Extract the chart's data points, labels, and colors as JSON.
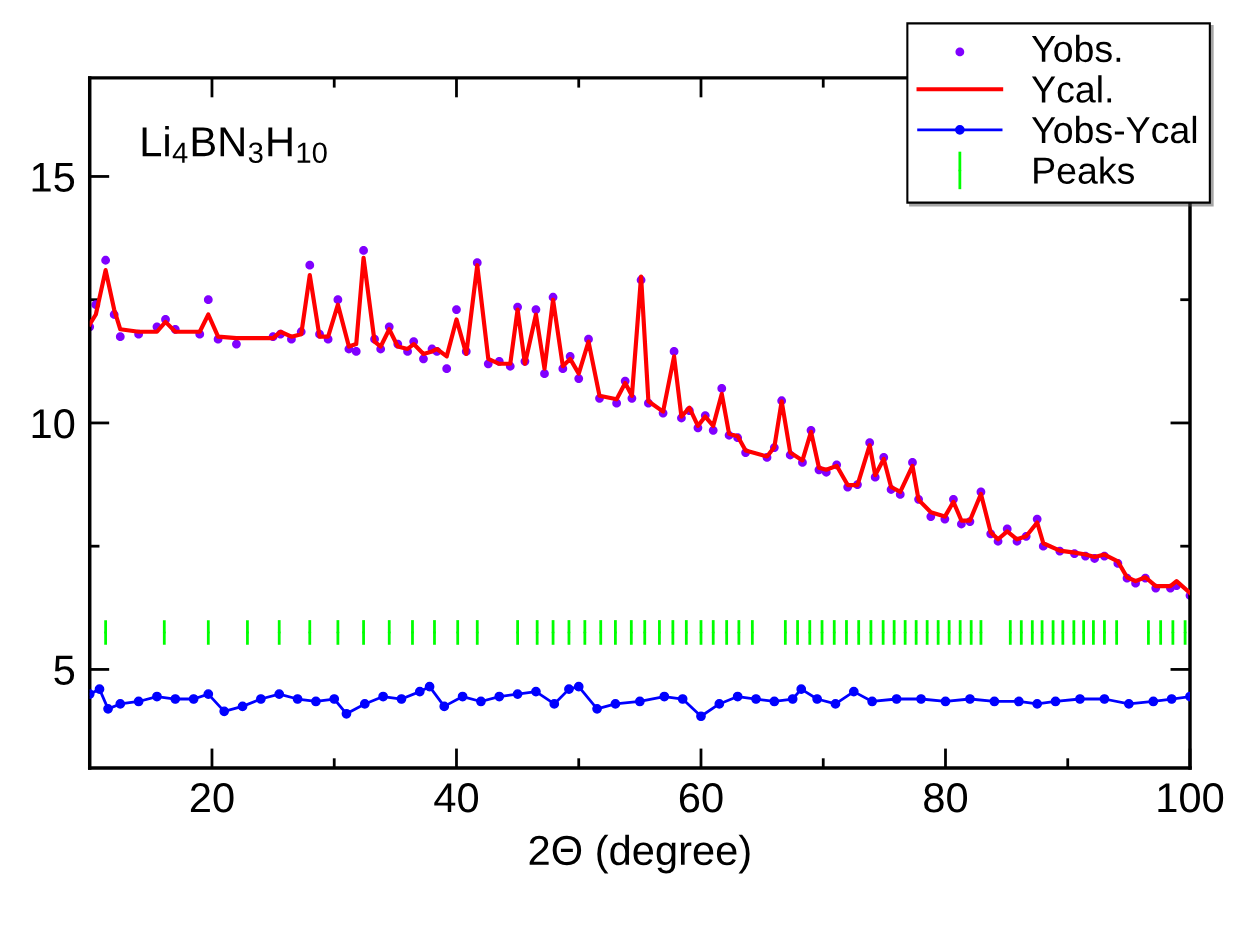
{
  "chart_data": {
    "type": "scatter",
    "xlabel": "2Θ (degree)",
    "annotations": [
      "Li$_{4}$BN$_{3}$H$_{10}$"
    ],
    "xlim": [
      10,
      100
    ],
    "ylim": [
      3,
      17
    ],
    "xticks": [
      20,
      {
        "value": 30,
        "label": null
      },
      40,
      {
        "value": 50,
        "label": null
      },
      60,
      {
        "value": 70,
        "label": null
      },
      80,
      {
        "value": 90,
        "label": null
      },
      100
    ],
    "yticks": [
      5,
      {
        "value": 7.5,
        "label": null
      },
      10,
      {
        "value": 12.5,
        "label": null
      },
      15
    ],
    "grid": false,
    "legend": "top right",
    "series": [
      {
        "name": "Yobs.",
        "type": "scatter",
        "marker": "circle",
        "color": "#8000ff",
        "x": [
          10,
          10.5,
          11.3,
          12.0,
          12.5,
          14,
          15.5,
          16.2,
          17,
          19,
          19.7,
          20.5,
          22,
          25,
          25.6,
          26.5,
          27.3,
          28.0,
          28.8,
          29.5,
          30.3,
          31.2,
          31.8,
          32.4,
          33.3,
          33.8,
          34.5,
          35.2,
          36,
          36.5,
          37.3,
          38,
          38.4,
          39.2,
          40.0,
          40.8,
          41.7,
          42.6,
          43.5,
          44.4,
          45.0,
          45.6,
          46.5,
          47.2,
          47.9,
          48.7,
          49.3,
          50.0,
          50.8,
          51.7,
          53.1,
          53.8,
          54.35,
          55.1,
          55.7,
          56.9,
          57.8,
          58.4,
          59.05,
          59.75,
          60.35,
          61.0,
          61.7,
          62.3,
          63.0,
          63.65,
          65.4,
          66.0,
          66.6,
          67.3,
          68.3,
          69.0,
          69.65,
          70.25,
          71.1,
          72.0,
          72.8,
          73.8,
          74.25,
          74.95,
          75.55,
          76.3,
          77.3,
          77.8,
          78.8,
          79.95,
          80.65,
          81.3,
          82.0,
          82.9,
          83.7,
          84.3,
          85.05,
          85.85,
          86.6,
          87.5,
          88.0,
          89.35,
          90.55,
          91.45,
          92.2,
          93.0,
          94.1,
          94.85,
          95.55,
          96.35,
          97.2,
          98.4,
          98.9,
          100
        ],
        "values": [
          11.95,
          12.4,
          13.3,
          12.2,
          11.75,
          11.8,
          11.95,
          12.1,
          11.9,
          11.8,
          12.5,
          11.7,
          11.6,
          11.75,
          11.8,
          11.7,
          11.85,
          13.2,
          11.8,
          11.7,
          12.5,
          11.5,
          11.45,
          13.5,
          11.7,
          11.5,
          11.95,
          11.6,
          11.45,
          11.65,
          11.3,
          11.5,
          11.45,
          11.1,
          12.3,
          11.45,
          13.25,
          11.2,
          11.25,
          11.15,
          12.35,
          11.25,
          12.3,
          11.0,
          12.55,
          11.1,
          11.35,
          10.9,
          11.7,
          10.5,
          10.4,
          10.85,
          10.5,
          12.9,
          10.4,
          10.2,
          11.45,
          10.1,
          10.25,
          9.9,
          10.15,
          9.85,
          10.7,
          9.75,
          9.7,
          9.4,
          9.3,
          9.5,
          10.45,
          9.35,
          9.2,
          9.85,
          9.05,
          9.0,
          9.15,
          8.7,
          8.75,
          9.6,
          8.9,
          9.3,
          8.65,
          8.55,
          9.2,
          8.45,
          8.1,
          8.05,
          8.45,
          7.95,
          8.0,
          8.6,
          7.75,
          7.6,
          7.85,
          7.6,
          7.7,
          8.05,
          7.5,
          7.4,
          7.35,
          7.3,
          7.25,
          7.3,
          7.15,
          6.85,
          6.75,
          6.85,
          6.65,
          6.65,
          6.7,
          6.5
        ]
      },
      {
        "name": "Ycal.",
        "type": "line",
        "marker": "none",
        "line_style": "solid",
        "color": "#ff0000",
        "x": [
          10,
          10.5,
          11.3,
          12.0,
          12.5,
          14,
          15.5,
          16.2,
          17,
          19,
          19.7,
          20.5,
          22,
          25,
          25.6,
          26.5,
          27.3,
          28.0,
          28.8,
          29.5,
          30.3,
          31.2,
          31.8,
          32.4,
          33.3,
          33.8,
          34.5,
          35.2,
          36,
          36.5,
          37.3,
          38,
          38.4,
          39.2,
          40.0,
          40.8,
          41.7,
          42.6,
          43.5,
          44.4,
          45.0,
          45.6,
          46.5,
          47.2,
          47.9,
          48.7,
          49.3,
          50.0,
          50.8,
          51.7,
          53.1,
          53.8,
          54.35,
          55.1,
          55.7,
          56.9,
          57.8,
          58.4,
          59.05,
          59.75,
          60.35,
          61.0,
          61.7,
          62.3,
          63.0,
          63.65,
          65.4,
          66.0,
          66.6,
          67.3,
          68.3,
          69.0,
          69.65,
          70.25,
          71.1,
          72.0,
          72.8,
          73.8,
          74.25,
          74.95,
          75.55,
          76.3,
          77.3,
          77.8,
          78.8,
          79.95,
          80.65,
          81.3,
          82.0,
          82.9,
          83.7,
          84.3,
          85.05,
          85.85,
          86.6,
          87.5,
          88.0,
          89.35,
          90.55,
          91.45,
          92.2,
          93.0,
          94.1,
          94.85,
          95.55,
          96.35,
          97.2,
          98.4,
          98.9,
          100
        ],
        "values": [
          12.0,
          12.2,
          13.1,
          12.3,
          11.9,
          11.85,
          11.85,
          12.05,
          11.85,
          11.85,
          12.2,
          11.75,
          11.72,
          11.72,
          11.85,
          11.75,
          11.8,
          13.0,
          11.75,
          11.75,
          12.4,
          11.55,
          11.6,
          13.35,
          11.65,
          11.55,
          11.9,
          11.55,
          11.5,
          11.6,
          11.4,
          11.45,
          11.5,
          11.35,
          12.1,
          11.4,
          13.2,
          11.3,
          11.2,
          11.2,
          12.3,
          11.2,
          12.2,
          11.1,
          12.5,
          11.15,
          11.3,
          11.0,
          11.65,
          10.55,
          10.48,
          10.81,
          10.55,
          12.97,
          10.44,
          10.23,
          11.35,
          10.13,
          10.31,
          9.94,
          10.13,
          9.94,
          10.59,
          9.78,
          9.73,
          9.44,
          9.32,
          9.51,
          10.44,
          9.4,
          9.24,
          9.82,
          9.09,
          9.05,
          9.13,
          8.74,
          8.74,
          9.55,
          8.94,
          9.27,
          8.7,
          8.6,
          9.13,
          8.44,
          8.19,
          8.1,
          8.4,
          8.02,
          8.02,
          8.56,
          7.78,
          7.64,
          7.8,
          7.64,
          7.7,
          7.98,
          7.56,
          7.41,
          7.37,
          7.33,
          7.28,
          7.33,
          7.19,
          6.87,
          6.79,
          6.87,
          6.69,
          6.69,
          6.79,
          6.55
        ]
      },
      {
        "name": "Yobs-Ycal",
        "type": "line",
        "marker": "circle",
        "line_style": "solid",
        "color": "#0000ff",
        "x": [
          10,
          10.8,
          11.5,
          12.5,
          14,
          15.5,
          17,
          18.5,
          19.7,
          21,
          22.5,
          24,
          25.5,
          27,
          28.5,
          30,
          31,
          32.5,
          34,
          35.5,
          37,
          37.8,
          39,
          40.5,
          42,
          43.5,
          45,
          46.5,
          48,
          49.2,
          50,
          51.5,
          53,
          55,
          57,
          58.5,
          60,
          61.5,
          63,
          64.5,
          66,
          67.5,
          68.2,
          69.5,
          71,
          72.5,
          74,
          76,
          78,
          80,
          82,
          84,
          86,
          87.5,
          89,
          91,
          93,
          95,
          97,
          98.5,
          100
        ],
        "values": [
          4.5,
          4.6,
          4.2,
          4.3,
          4.35,
          4.45,
          4.4,
          4.4,
          4.5,
          4.15,
          4.25,
          4.4,
          4.5,
          4.4,
          4.35,
          4.4,
          4.1,
          4.3,
          4.45,
          4.4,
          4.55,
          4.65,
          4.25,
          4.45,
          4.35,
          4.45,
          4.5,
          4.55,
          4.3,
          4.6,
          4.65,
          4.2,
          4.3,
          4.35,
          4.45,
          4.4,
          4.05,
          4.3,
          4.45,
          4.4,
          4.35,
          4.4,
          4.6,
          4.4,
          4.3,
          4.55,
          4.35,
          4.4,
          4.4,
          4.35,
          4.4,
          4.35,
          4.35,
          4.3,
          4.35,
          4.4,
          4.4,
          4.3,
          4.35,
          4.4,
          4.45
        ]
      },
      {
        "name": "Peaks",
        "type": "scatter",
        "marker": "none",
        "color": "#00ff00",
        "x": [
          11.3,
          16.1,
          19.7,
          22.9,
          25.5,
          28.0,
          30.3,
          32.4,
          34.5,
          36.4,
          38.2,
          40.1,
          41.7,
          45.0,
          46.6,
          47.9,
          49.2,
          50.5,
          51.8,
          53.0,
          54.3,
          55.4,
          56.6,
          57.7,
          58.8,
          60.0,
          61.0,
          62.1,
          63.1,
          64.2,
          66.9,
          67.9,
          68.9,
          69.9,
          70.9,
          71.9,
          72.9,
          73.9,
          74.9,
          75.8,
          76.7,
          77.6,
          78.5,
          79.4,
          80.3,
          81.2,
          82.1,
          82.9,
          85.3,
          86.2,
          87.1,
          87.9,
          88.8,
          89.6,
          90.5,
          91.3,
          92.1,
          93.0,
          94.0,
          96.6,
          97.6,
          98.6,
          99.6
        ],
        "values": [
          5.75,
          5.75,
          5.75,
          5.75,
          5.75,
          5.75,
          5.75,
          5.75,
          5.75,
          5.75,
          5.75,
          5.75,
          5.75,
          5.75,
          5.75,
          5.75,
          5.75,
          5.75,
          5.75,
          5.75,
          5.75,
          5.75,
          5.75,
          5.75,
          5.75,
          5.75,
          5.75,
          5.75,
          5.75,
          5.75,
          5.75,
          5.75,
          5.75,
          5.75,
          5.75,
          5.75,
          5.75,
          5.75,
          5.75,
          5.75,
          5.75,
          5.75,
          5.75,
          5.75,
          5.75,
          5.75,
          5.75,
          5.75,
          5.75,
          5.75,
          5.75,
          5.75,
          5.75,
          5.75,
          5.75,
          5.75,
          5.75,
          5.75,
          5.75,
          5.75,
          5.75,
          5.75,
          5.75
        ],
        "errors": [
          0.25,
          0.25,
          0.25,
          0.25,
          0.25,
          0.25,
          0.25,
          0.25,
          0.25,
          0.25,
          0.25,
          0.25,
          0.25,
          0.25,
          0.25,
          0.25,
          0.25,
          0.25,
          0.25,
          0.25,
          0.25,
          0.25,
          0.25,
          0.25,
          0.25,
          0.25,
          0.25,
          0.25,
          0.25,
          0.25,
          0.25,
          0.25,
          0.25,
          0.25,
          0.25,
          0.25,
          0.25,
          0.25,
          0.25,
          0.25,
          0.25,
          0.25,
          0.25,
          0.25,
          0.25,
          0.25,
          0.25,
          0.25,
          0.25,
          0.25,
          0.25,
          0.25,
          0.25,
          0.25,
          0.25,
          0.25,
          0.25,
          0.25,
          0.25,
          0.25,
          0.25,
          0.25,
          0.25
        ]
      }
    ]
  }
}
